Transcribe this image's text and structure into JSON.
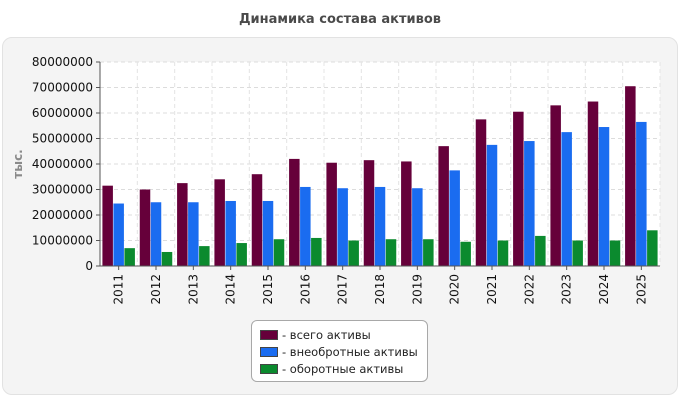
{
  "page": {
    "title": "Динамика состава активов"
  },
  "chart_data": {
    "type": "bar",
    "ylabel": "тыс.",
    "ylim": [
      0,
      80000000
    ],
    "yticks": [
      0,
      10000000,
      20000000,
      30000000,
      40000000,
      50000000,
      60000000,
      70000000,
      80000000
    ],
    "categories": [
      "2011",
      "2012",
      "2013",
      "2014",
      "2015",
      "2016",
      "2017",
      "2018",
      "2019",
      "2020",
      "2021",
      "2022",
      "2023",
      "2024",
      "2025"
    ],
    "grid": true,
    "legend_position": "bottom",
    "series": [
      {
        "name": "- всего активы",
        "color": "#66003a",
        "values": [
          31500000,
          30000000,
          32500000,
          34000000,
          36000000,
          42000000,
          40500000,
          41500000,
          41000000,
          47000000,
          57500000,
          60500000,
          63000000,
          64500000,
          70500000
        ]
      },
      {
        "name": "- внеобротные активы",
        "color": "#1a6cf0",
        "values": [
          24500000,
          25000000,
          25000000,
          25500000,
          25500000,
          31000000,
          30500000,
          31000000,
          30500000,
          37500000,
          47500000,
          49000000,
          52500000,
          54500000,
          56500000
        ]
      },
      {
        "name": "- оборотные активы",
        "color": "#0b8a2e",
        "values": [
          7000000,
          5500000,
          7800000,
          9000000,
          10500000,
          11000000,
          10000000,
          10500000,
          10500000,
          9500000,
          10000000,
          11800000,
          10000000,
          10000000,
          14000000
        ]
      }
    ]
  }
}
